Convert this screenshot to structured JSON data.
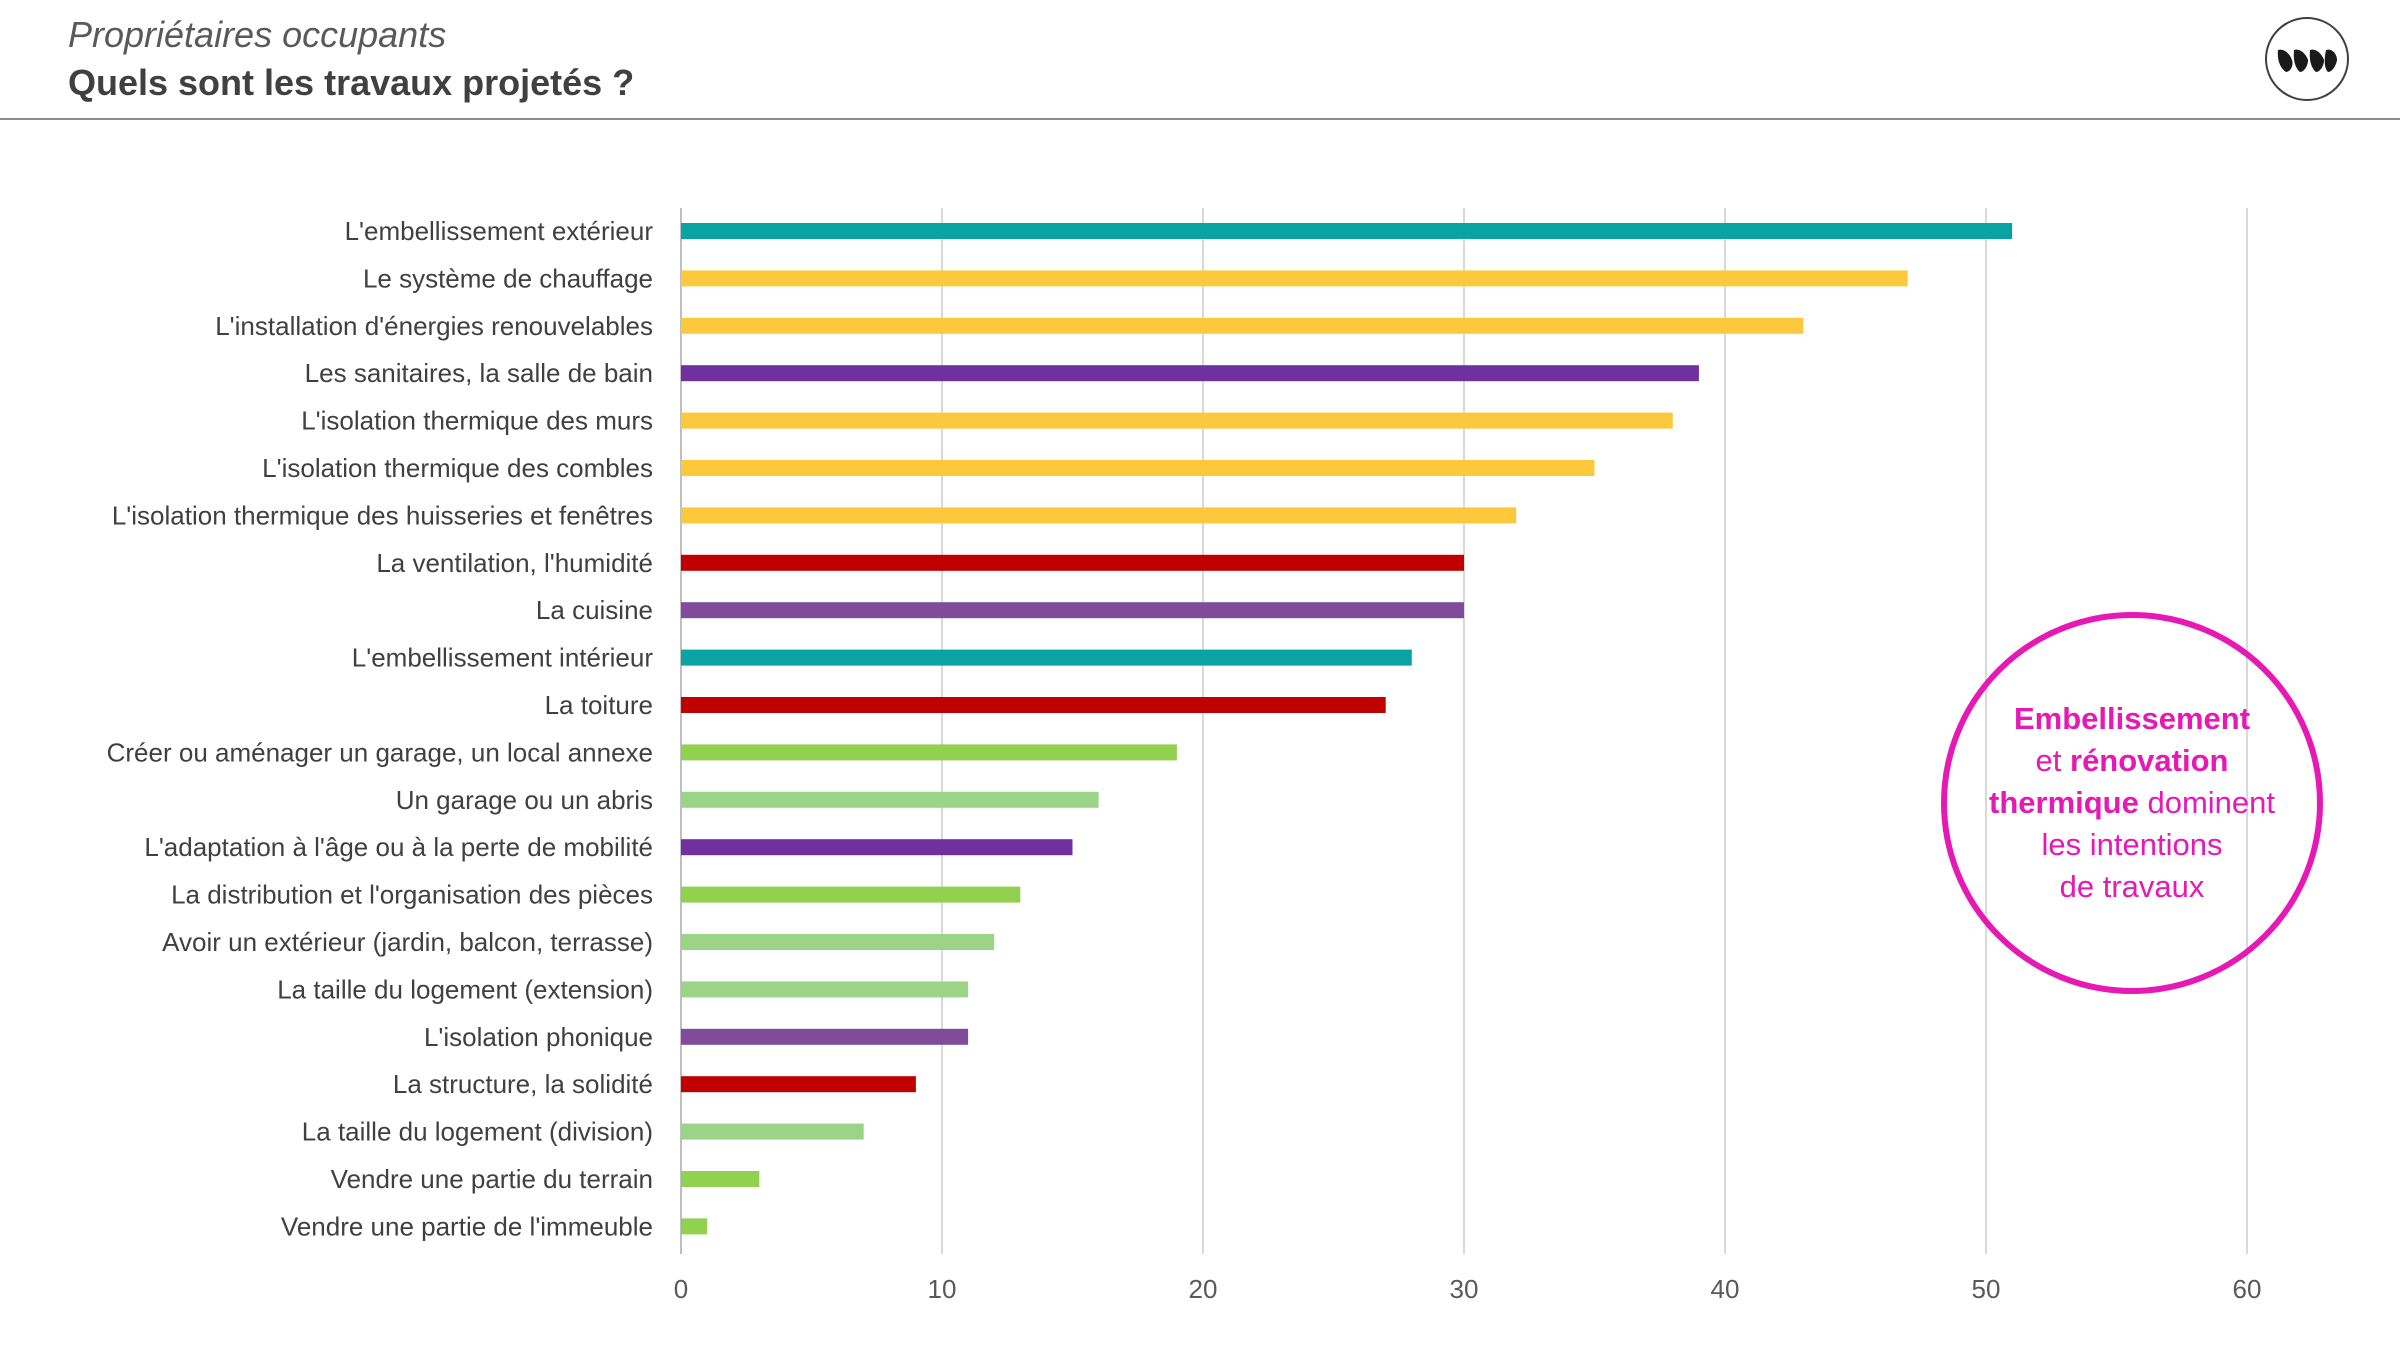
{
  "header": {
    "subtitle": "Propriétaires occupants",
    "title": "Quels sont les travaux projetés ?"
  },
  "logo": {
    "icon": "leaf-logo-icon"
  },
  "callout": {
    "line1_bold": "Embellissement",
    "line2_prefix": "et ",
    "line2_bold": "rénovation",
    "line3_bold": "thermique",
    "line3_suffix": " dominent",
    "line4": "les intentions",
    "line5": "de travaux",
    "color": "#e619b4"
  },
  "colors": {
    "teal": "#0aa3a3",
    "yellow": "#fcc93c",
    "purple": "#7030a0",
    "red": "#c00000",
    "green": "#92d050",
    "light_green": "#9bd487",
    "violet": "#7f4b9b",
    "grid": "#d9d9d9",
    "text": "#404040"
  },
  "chart_data": {
    "type": "bar",
    "orientation": "horizontal",
    "categories": [
      "L'embellissement extérieur",
      "Le système de chauffage",
      "L'installation d'énergies renouvelables",
      "Les sanitaires, la salle de bain",
      "L'isolation thermique des murs",
      "L'isolation thermique des combles",
      "L'isolation thermique des huisseries et fenêtres",
      "La ventilation, l'humidité",
      "La cuisine",
      "L'embellissement intérieur",
      "La toiture",
      "Créer ou aménager un garage, un local annexe",
      "Un garage ou un abris",
      "L'adaptation à l'âge ou à la perte de mobilité",
      "La distribution et l'organisation des pièces",
      "Avoir un extérieur (jardin, balcon, terrasse)",
      "La taille du logement (extension)",
      "L'isolation phonique",
      "La structure, la solidité",
      "La taille du logement (division)",
      "Vendre une partie du terrain",
      "Vendre une partie de l'immeuble"
    ],
    "values": [
      51,
      47,
      43,
      39,
      38,
      35,
      32,
      30,
      30,
      28,
      27,
      19,
      16,
      15,
      13,
      12,
      11,
      11,
      9,
      7,
      3,
      1
    ],
    "bar_colors": [
      "#0aa3a3",
      "#fcc93c",
      "#fcc93c",
      "#7030a0",
      "#fcc93c",
      "#fcc93c",
      "#fcc93c",
      "#c00000",
      "#7f4b9b",
      "#0aa3a3",
      "#c00000",
      "#92d050",
      "#9bd487",
      "#7030a0",
      "#92d050",
      "#9bd487",
      "#9bd487",
      "#7f4b9b",
      "#c00000",
      "#9bd487",
      "#92d050",
      "#92d050"
    ],
    "xlim": [
      0,
      60
    ],
    "xticks": [
      0,
      10,
      20,
      30,
      40,
      50,
      60
    ],
    "grid": true,
    "legend": "none"
  }
}
